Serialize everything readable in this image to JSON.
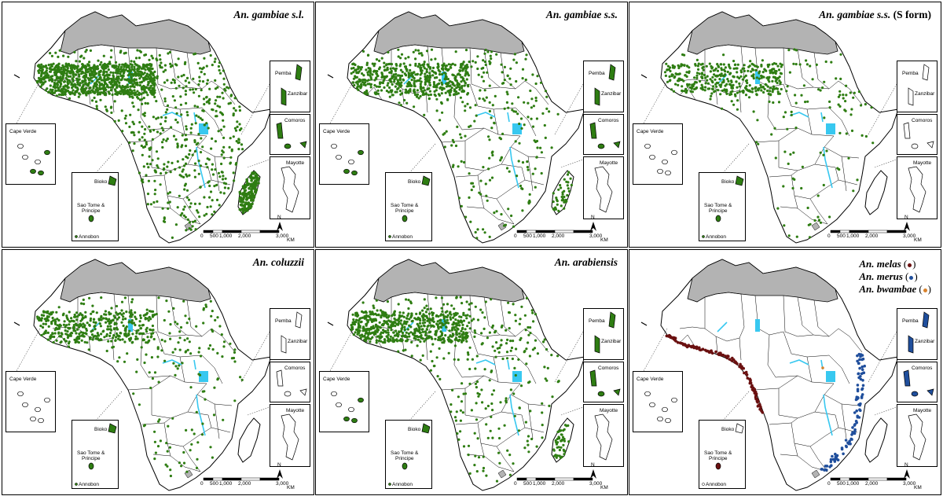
{
  "panels": [
    {
      "id": "p1",
      "title": "An. gambiae s.l.",
      "title_suffix": "",
      "density": 1.0,
      "mada": "full",
      "legend": null,
      "insets": {
        "pemba": "Pemba",
        "zanzibar": "Zanzibar",
        "comoros": "Comoros",
        "mayotte": "Mayotte",
        "cape_verde": "Cape Verde",
        "bioko": "Bioko",
        "sao_tome": "Sao Tome &",
        "principe": "Principe",
        "annobon": "Annobon"
      }
    },
    {
      "id": "p2",
      "title": "An. gambiae s.s.",
      "title_suffix": "",
      "density": 0.55,
      "mada": "partial",
      "legend": null,
      "insets": {
        "pemba": "Pemba",
        "zanzibar": "Zanzibar",
        "comoros": "Comoros",
        "mayotte": "Mayotte",
        "cape_verde": "Cape Verde",
        "bioko": "Bioko",
        "sao_tome": "Sao Tome &",
        "principe": "Principe",
        "annobon": "Annobon"
      }
    },
    {
      "id": "p3",
      "title": "An. gambiae s.s.",
      "title_suffix": " (S form)",
      "density": 0.35,
      "mada": "none",
      "legend": null,
      "insets": {
        "pemba": "Pemba",
        "zanzibar": "Zanzibar",
        "comoros": "Comoros",
        "mayotte": "Mayotte",
        "cape_verde": "Cape Verde",
        "bioko": "Bioko",
        "sao_tome": "Sao Tome &",
        "principe": "Principe",
        "annobon": "Annobon"
      }
    },
    {
      "id": "p4",
      "title": "An. coluzzii",
      "title_suffix": "",
      "density": 0.4,
      "mada": "none",
      "legend": null,
      "insets": {
        "pemba": "Pemba",
        "zanzibar": "Zanzibar",
        "comoros": "Comoros",
        "mayotte": "Mayotte",
        "cape_verde": "Cape Verde",
        "bioko": "Bioko",
        "sao_tome": "Sao Tome &",
        "principe": "Principe",
        "annobon": "Annobon"
      }
    },
    {
      "id": "p5",
      "title": "An. arabiensis",
      "title_suffix": "",
      "density": 0.6,
      "mada": "partial",
      "legend": null,
      "insets": {
        "pemba": "Pemba",
        "zanzibar": "Zanzibar",
        "comoros": "Comoros",
        "mayotte": "Mayotte",
        "cape_verde": "Cape Verde",
        "bioko": "Bioko",
        "sao_tome": "Sao Tome &",
        "principe": "Principe",
        "annobon": "Annobon"
      }
    },
    {
      "id": "p6",
      "title": "",
      "title_suffix": "",
      "density": 0,
      "mada": "none",
      "legend": [
        {
          "label": "An. melas",
          "color": "#6b1010",
          "open": "(",
          "close": ")"
        },
        {
          "label": "An. merus",
          "color": "#1f4e9c",
          "open": "(",
          "close": ")"
        },
        {
          "label": "An. bwambae",
          "color": "#d9822b",
          "open": "(",
          "close": ")"
        }
      ],
      "insets": {
        "pemba": "Pemba",
        "zanzibar": "Zanzibar",
        "comoros": "Comoros",
        "mayotte": "Mayotte",
        "cape_verde": "Cape Verde",
        "bioko": "Bioko",
        "sao_tome": "Sao Tome &",
        "principe": "Principe",
        "annobon": "Annobon"
      }
    }
  ],
  "scale_bar": {
    "ticks": [
      "0",
      "500",
      "1,000",
      "2,000",
      "3,000"
    ],
    "unit": "KM",
    "north": "N"
  },
  "colors": {
    "occurrence": "#2e7d12",
    "melas": "#6b1010",
    "merus": "#1f4e9c",
    "bwambae": "#d9822b",
    "north_africa_grey": "#b3b3b3",
    "water": "#38c8f0",
    "land": "#ffffff",
    "border": "#000000"
  }
}
